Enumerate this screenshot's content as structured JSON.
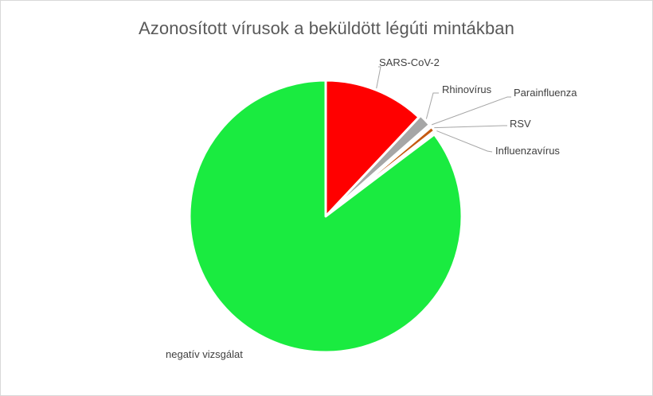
{
  "chart_data": {
    "type": "pie",
    "title": "Azonosított vírusok a beküldött légúti mintákban",
    "slices": [
      {
        "label": "SARS-CoV-2",
        "value": 12.0,
        "color": "#ff0000"
      },
      {
        "label": "Rhinovírus",
        "value": 1.5,
        "color": "#a6a6a6"
      },
      {
        "label": "Parainfluenza",
        "value": 0.3,
        "color": "#c0c0c0"
      },
      {
        "label": "RSV",
        "value": 0.6,
        "color": "#c55a11"
      },
      {
        "label": "Influenzavírus",
        "value": 0.3,
        "color": "#d9d9d9"
      },
      {
        "label": "negatív vizsgálat",
        "value": 85.3,
        "color": "#1aeb40"
      }
    ],
    "legend": "none",
    "start_angle_deg": 0,
    "direction": "clockwise"
  }
}
